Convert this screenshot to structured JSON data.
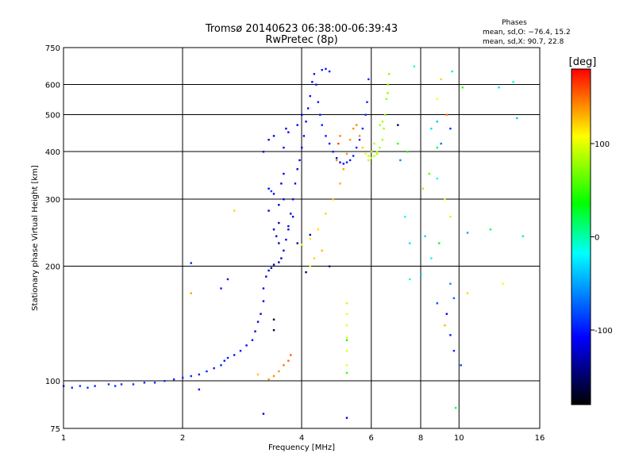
{
  "chart_data": {
    "type": "scatter",
    "title": "Tromsø 20140623 06:38:00-06:39:43",
    "subtitle": "RwPretec (8p)",
    "xlabel": "Frequency [MHz]",
    "ylabel": "Stationary phase Virtual Height [km]",
    "x_scale": "log",
    "y_scale": "log",
    "xlim": [
      1,
      16
    ],
    "ylim": [
      75,
      750
    ],
    "x_ticks": [
      1,
      2,
      4,
      6,
      8,
      10,
      16
    ],
    "y_ticks": [
      75,
      100,
      200,
      300,
      400,
      500,
      600,
      750
    ],
    "grid": true,
    "phase_info": {
      "heading": "Phases",
      "line_o": "mean, sd,O: −76.4, 15.2",
      "line_x": "mean, sd,X:  90.7, 22.8"
    },
    "colorbar": {
      "label": "[deg]",
      "range": [
        -180,
        180
      ],
      "ticks": [
        100,
        0,
        -100
      ],
      "colors": [
        "#ff0000",
        "#ffff00",
        "#00ff00",
        "#00ffff",
        "#0000ff",
        "#000000"
      ]
    },
    "series": [
      {
        "values": [
          [
            1.0,
            97,
            -90
          ],
          [
            1.05,
            96,
            -90
          ],
          [
            1.1,
            97,
            -88
          ],
          [
            1.15,
            96,
            -90
          ],
          [
            1.2,
            97,
            -92
          ],
          [
            1.3,
            98,
            -90
          ],
          [
            1.35,
            97,
            -88
          ],
          [
            1.4,
            98,
            -90
          ],
          [
            1.5,
            98,
            -90
          ],
          [
            1.6,
            99,
            -92
          ],
          [
            1.7,
            99,
            -90
          ],
          [
            1.8,
            100,
            -90
          ],
          [
            1.9,
            101,
            -92
          ],
          [
            2.0,
            102,
            -90
          ],
          [
            2.1,
            103,
            -92
          ],
          [
            2.2,
            104,
            -94
          ],
          [
            2.3,
            106,
            -95
          ],
          [
            2.4,
            108,
            -96
          ],
          [
            2.5,
            110,
            -96
          ],
          [
            2.55,
            113,
            -98
          ],
          [
            2.6,
            115,
            -100
          ],
          [
            2.7,
            117,
            -100
          ],
          [
            2.8,
            120,
            -102
          ],
          [
            2.9,
            124,
            -105
          ],
          [
            3.0,
            128,
            -108
          ],
          [
            3.05,
            135,
            -112
          ],
          [
            3.1,
            143,
            -115
          ],
          [
            3.15,
            150,
            -118
          ],
          [
            3.2,
            162,
            -120
          ],
          [
            3.2,
            175,
            -118
          ],
          [
            3.25,
            188,
            -120
          ],
          [
            3.3,
            195,
            -125
          ],
          [
            3.35,
            198,
            -128
          ],
          [
            3.4,
            202,
            -130
          ],
          [
            3.5,
            205,
            -128
          ],
          [
            3.55,
            210,
            -126
          ],
          [
            3.6,
            220,
            -120
          ],
          [
            3.65,
            235,
            -115
          ],
          [
            3.7,
            255,
            -112
          ],
          [
            3.75,
            275,
            -110
          ],
          [
            3.8,
            300,
            -108
          ],
          [
            3.85,
            330,
            -110
          ],
          [
            3.9,
            360,
            -110
          ],
          [
            3.95,
            380,
            -110
          ],
          [
            4.0,
            410,
            -112
          ],
          [
            4.05,
            440,
            -115
          ],
          [
            4.1,
            480,
            -112
          ],
          [
            4.15,
            520,
            -110
          ],
          [
            4.2,
            560,
            -105
          ],
          [
            4.25,
            610,
            -105
          ],
          [
            4.3,
            640,
            -102
          ],
          [
            4.35,
            600,
            -100
          ],
          [
            4.4,
            540,
            -100
          ],
          [
            4.45,
            500,
            -100
          ],
          [
            4.5,
            470,
            -100
          ],
          [
            4.6,
            440,
            -100
          ],
          [
            4.7,
            420,
            -102
          ],
          [
            4.8,
            400,
            -102
          ],
          [
            4.9,
            385,
            -104
          ],
          [
            5.0,
            375,
            -104
          ],
          [
            5.1,
            372,
            -102
          ],
          [
            5.2,
            375,
            -100
          ],
          [
            5.3,
            380,
            -100
          ],
          [
            5.4,
            390,
            -98
          ],
          [
            5.5,
            410,
            -96
          ],
          [
            5.6,
            430,
            -94
          ],
          [
            5.7,
            460,
            -94
          ],
          [
            5.8,
            500,
            -94
          ],
          [
            5.85,
            540,
            -95
          ],
          [
            5.9,
            620,
            -95
          ],
          [
            3.3,
            280,
            -120
          ],
          [
            3.4,
            310,
            -118
          ],
          [
            3.45,
            240,
            -125
          ],
          [
            3.5,
            260,
            -120
          ],
          [
            3.55,
            330,
            -115
          ],
          [
            3.6,
            350,
            -112
          ],
          [
            3.3,
            320,
            -115
          ],
          [
            3.4,
            250,
            -122
          ],
          [
            3.5,
            230,
            -125
          ],
          [
            3.6,
            300,
            -115
          ],
          [
            3.7,
            250,
            -110
          ],
          [
            3.8,
            270,
            -112
          ],
          [
            2.1,
            204,
            -95
          ],
          [
            2.5,
            175,
            -100
          ],
          [
            2.6,
            185,
            -102
          ],
          [
            3.2,
            400,
            -118
          ],
          [
            3.3,
            430,
            -118
          ],
          [
            3.4,
            440,
            -116
          ],
          [
            3.6,
            410,
            -112
          ],
          [
            3.65,
            460,
            -110
          ],
          [
            3.7,
            450,
            -110
          ],
          [
            4.5,
            656,
            -100
          ],
          [
            4.6,
            660,
            -100
          ],
          [
            4.7,
            650,
            -100
          ],
          [
            2.2,
            95,
            -105
          ],
          [
            3.5,
            290,
            -118
          ],
          [
            3.9,
            470,
            -110
          ],
          [
            4.0,
            500,
            -112
          ]
        ]
      },
      {
        "values": [
          [
            4.0,
            228,
            110
          ],
          [
            4.2,
            236,
            115
          ],
          [
            4.4,
            250,
            118
          ],
          [
            4.6,
            275,
            120
          ],
          [
            4.8,
            300,
            125
          ],
          [
            5.0,
            330,
            130
          ],
          [
            5.1,
            360,
            135
          ],
          [
            5.2,
            395,
            140
          ],
          [
            5.3,
            430,
            140
          ],
          [
            5.4,
            460,
            140
          ],
          [
            5.5,
            470,
            142
          ],
          [
            5.6,
            440,
            140
          ],
          [
            5.7,
            410,
            120
          ],
          [
            5.8,
            395,
            100
          ],
          [
            5.9,
            390,
            90
          ],
          [
            6.0,
            385,
            90
          ],
          [
            6.1,
            390,
            88
          ],
          [
            6.2,
            400,
            86
          ],
          [
            6.3,
            410,
            85
          ],
          [
            6.4,
            430,
            84
          ],
          [
            6.45,
            460,
            82
          ],
          [
            6.5,
            500,
            80
          ],
          [
            6.55,
            550,
            78
          ],
          [
            6.6,
            600,
            76
          ],
          [
            6.65,
            640,
            75
          ],
          [
            6.6,
            570,
            78
          ],
          [
            6.3,
            470,
            85
          ],
          [
            6.1,
            420,
            88
          ],
          [
            5.9,
            380,
            92
          ],
          [
            6.0,
            400,
            90
          ],
          [
            6.2,
            395,
            86
          ],
          [
            6.4,
            480,
            82
          ],
          [
            3.5,
            106,
            140
          ],
          [
            3.6,
            110,
            148
          ],
          [
            3.7,
            113,
            152
          ],
          [
            3.75,
            117,
            155
          ],
          [
            3.4,
            103,
            140
          ],
          [
            3.3,
            101,
            135
          ],
          [
            3.1,
            104,
            125
          ],
          [
            5.2,
            150,
            105
          ],
          [
            5.2,
            140,
            100
          ],
          [
            5.2,
            130,
            100
          ],
          [
            5.2,
            120,
            100
          ],
          [
            5.2,
            110,
            100
          ],
          [
            5.2,
            160,
            95
          ],
          [
            4.2,
            200,
            110
          ],
          [
            4.3,
            210,
            120
          ],
          [
            4.5,
            220,
            128
          ],
          [
            2.1,
            170,
            135
          ],
          [
            2.7,
            280,
            120
          ],
          [
            7.0,
            420,
            50
          ],
          [
            7.4,
            400,
            40
          ],
          [
            8.8,
            410,
            20
          ],
          [
            9.2,
            300,
            110
          ],
          [
            9.5,
            270,
            95
          ],
          [
            8.9,
            230,
            40
          ],
          [
            9.2,
            140,
            130
          ],
          [
            8.4,
            350,
            60
          ],
          [
            8.1,
            320,
            80
          ],
          [
            10.5,
            170,
            120
          ],
          [
            12.9,
            180,
            110
          ],
          [
            9.0,
            620,
            120
          ],
          [
            8.8,
            550,
            110
          ],
          [
            9.3,
            500,
            145
          ],
          [
            4.95,
            420,
            160
          ],
          [
            4.9,
            380,
            140
          ],
          [
            5.0,
            440,
            145
          ]
        ]
      },
      {
        "values": [
          [
            7.7,
            670,
            -10
          ],
          [
            8.5,
            460,
            -30
          ],
          [
            8.8,
            480,
            -40
          ],
          [
            8.8,
            340,
            -20
          ],
          [
            9.0,
            420,
            -70
          ],
          [
            9.5,
            460,
            -90
          ],
          [
            9.6,
            650,
            10
          ],
          [
            10.2,
            590,
            50
          ],
          [
            12.6,
            590,
            -30
          ],
          [
            13.7,
            610,
            -10
          ],
          [
            14.0,
            490,
            -40
          ],
          [
            14.5,
            240,
            10
          ],
          [
            12.0,
            250,
            20
          ],
          [
            10.5,
            245,
            -50
          ],
          [
            9.5,
            180,
            -60
          ],
          [
            9.7,
            165,
            -70
          ],
          [
            8.8,
            160,
            -80
          ],
          [
            9.3,
            150,
            -110
          ],
          [
            9.5,
            132,
            -100
          ],
          [
            9.7,
            120,
            -95
          ],
          [
            10.1,
            110,
            -90
          ],
          [
            7.0,
            470,
            -160
          ],
          [
            7.1,
            380,
            -60
          ],
          [
            7.3,
            270,
            -20
          ],
          [
            7.5,
            230,
            -30
          ],
          [
            8.2,
            240,
            -30
          ],
          [
            8.5,
            210,
            -20
          ],
          [
            8.0,
            190,
            -40
          ],
          [
            7.5,
            185,
            -10
          ],
          [
            9.8,
            85,
            20
          ],
          [
            5.2,
            80,
            -110
          ],
          [
            3.2,
            82,
            -120
          ],
          [
            5.2,
            105,
            50
          ],
          [
            5.2,
            128,
            40
          ],
          [
            4.1,
            193,
            -150
          ],
          [
            3.9,
            230,
            -130
          ],
          [
            4.7,
            200,
            -140
          ],
          [
            3.4,
            145,
            -165
          ],
          [
            3.4,
            136,
            -165
          ],
          [
            4.2,
            242,
            -140
          ],
          [
            3.35,
            315,
            -90
          ]
        ]
      }
    ]
  }
}
